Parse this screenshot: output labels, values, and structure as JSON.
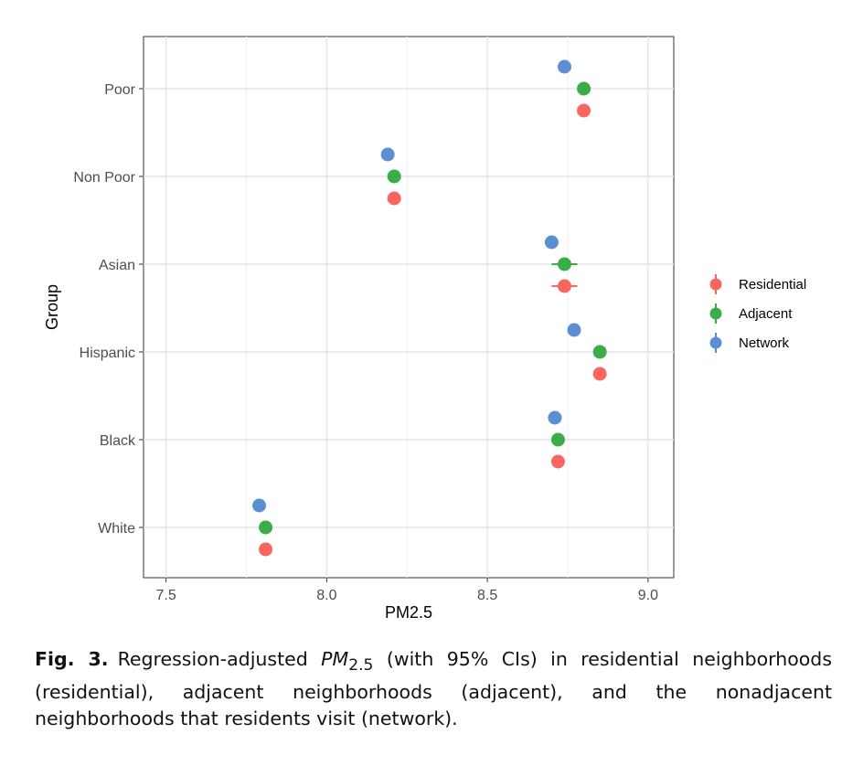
{
  "chart_data": {
    "type": "scatter",
    "orientation": "horizontal",
    "xlabel": "PM2.5",
    "ylabel": "Group",
    "xlim": [
      7.43,
      9.08
    ],
    "xticks": [
      "7.5",
      "8.0",
      "8.5",
      "9.0"
    ],
    "grid": true,
    "categories": [
      "Poor",
      "Non Poor",
      "Asian",
      "Hispanic",
      "Black",
      "White"
    ],
    "series": [
      {
        "name": "Network",
        "color": "#5b8fd1",
        "values": [
          8.74,
          8.19,
          8.7,
          8.77,
          8.71,
          7.79
        ],
        "ci": [
          [
            8.73,
            8.75
          ],
          [
            8.18,
            8.2
          ],
          [
            8.69,
            8.71
          ],
          [
            8.76,
            8.78
          ],
          [
            8.7,
            8.72
          ],
          [
            7.78,
            7.8
          ]
        ]
      },
      {
        "name": "Adjacent",
        "color": "#3aad48",
        "values": [
          8.8,
          8.21,
          8.74,
          8.85,
          8.72,
          7.81
        ],
        "ci": [
          [
            8.79,
            8.81
          ],
          [
            8.2,
            8.22
          ],
          [
            8.7,
            8.78
          ],
          [
            8.84,
            8.86
          ],
          [
            8.71,
            8.73
          ],
          [
            7.8,
            7.82
          ]
        ]
      },
      {
        "name": "Residential",
        "color": "#f8665f",
        "values": [
          8.8,
          8.21,
          8.74,
          8.85,
          8.72,
          7.81
        ],
        "ci": [
          [
            8.79,
            8.81
          ],
          [
            8.2,
            8.22
          ],
          [
            8.7,
            8.78
          ],
          [
            8.84,
            8.86
          ],
          [
            8.71,
            8.73
          ],
          [
            7.8,
            7.82
          ]
        ]
      }
    ],
    "legend": {
      "placement": "right",
      "entries": [
        "Residential",
        "Adjacent",
        "Network"
      ]
    }
  },
  "caption": {
    "label": "Fig. 3.",
    "prefix": "Regression-adjusted ",
    "pm_symbol": "PM",
    "pm_subscript": "2.5",
    "text": " (with 95% CIs) in residential neighborhoods (residential), adjacent neighborhoods (adjacent), and the nonadjacent neighborhoods that residents visit (network)."
  }
}
